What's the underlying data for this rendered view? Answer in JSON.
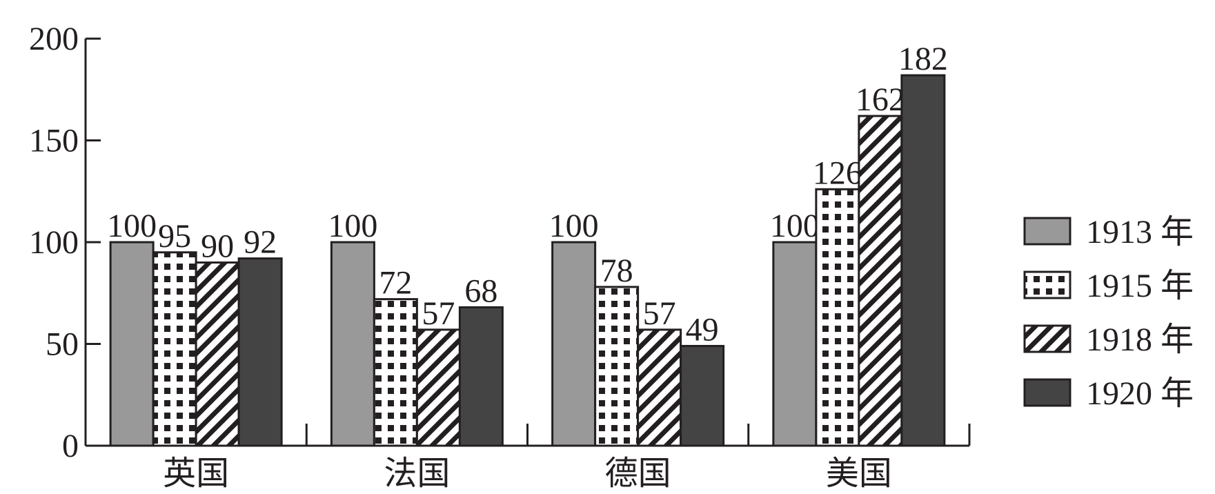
{
  "chart_data": {
    "type": "bar",
    "categories": [
      "英国",
      "法国",
      "德国",
      "美国"
    ],
    "series": [
      {
        "name": "1913 年",
        "color": "#999999",
        "values": [
          100,
          100,
          100,
          100
        ]
      },
      {
        "name": "1915 年",
        "color": "#ffffff",
        "pattern": "dots",
        "values": [
          95,
          72,
          78,
          126
        ]
      },
      {
        "name": "1918 年",
        "color": "#ffffff",
        "pattern": "hatch",
        "values": [
          90,
          57,
          57,
          162
        ]
      },
      {
        "name": "1920 年",
        "color": "#444444",
        "values": [
          92,
          68,
          49,
          182
        ]
      }
    ],
    "ylim": [
      0,
      200
    ],
    "yticks": [
      0,
      50,
      100,
      150,
      200
    ],
    "legend": "right"
  }
}
